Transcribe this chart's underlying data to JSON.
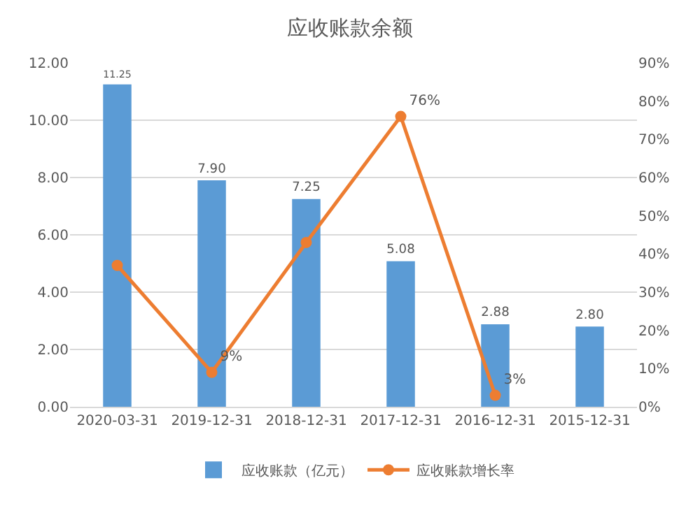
{
  "chart_data": {
    "type": "bar",
    "title": "应收账款余额",
    "categories": [
      "2020-03-31",
      "2019-12-31",
      "2018-12-31",
      "2017-12-31",
      "2016-12-31",
      "2015-12-31"
    ],
    "series": [
      {
        "name": "应收账款（亿元）",
        "color": "#5b9bd5",
        "values": [
          11.25,
          7.9,
          7.25,
          5.08,
          2.88,
          2.8
        ],
        "value_labels": [
          "11.25",
          "7.90",
          "7.25",
          "5.08",
          "2.88",
          "2.80"
        ]
      },
      {
        "name": "应收账款增长率",
        "type": "line",
        "axis": "y2",
        "color": "#ed7d31",
        "marker": "circle",
        "values": [
          37,
          9,
          43,
          76,
          3,
          null
        ],
        "value_labels": [
          null,
          "9%",
          null,
          "76%",
          "3%",
          null
        ]
      }
    ],
    "ylim": [
      0,
      12
    ],
    "yticks": [
      {
        "value": 0,
        "label": "0.00"
      },
      {
        "value": 2,
        "label": "2.00"
      },
      {
        "value": 4,
        "label": "4.00"
      },
      {
        "value": 6,
        "label": "6.00"
      },
      {
        "value": 8,
        "label": "8.00"
      },
      {
        "value": 10,
        "label": "10.00"
      },
      {
        "value": 12,
        "label": "12.00"
      }
    ],
    "y2lim": [
      0,
      90
    ],
    "y2ticks": [
      {
        "value": 0,
        "label": "0%"
      },
      {
        "value": 10,
        "label": "10%"
      },
      {
        "value": 20,
        "label": "20%"
      },
      {
        "value": 30,
        "label": "30%"
      },
      {
        "value": 40,
        "label": "40%"
      },
      {
        "value": 50,
        "label": "50%"
      },
      {
        "value": 60,
        "label": "60%"
      },
      {
        "value": 70,
        "label": "70%"
      },
      {
        "value": 80,
        "label": "80%"
      },
      {
        "value": 90,
        "label": "90%"
      }
    ],
    "grid": "y",
    "legend": "bottom"
  }
}
